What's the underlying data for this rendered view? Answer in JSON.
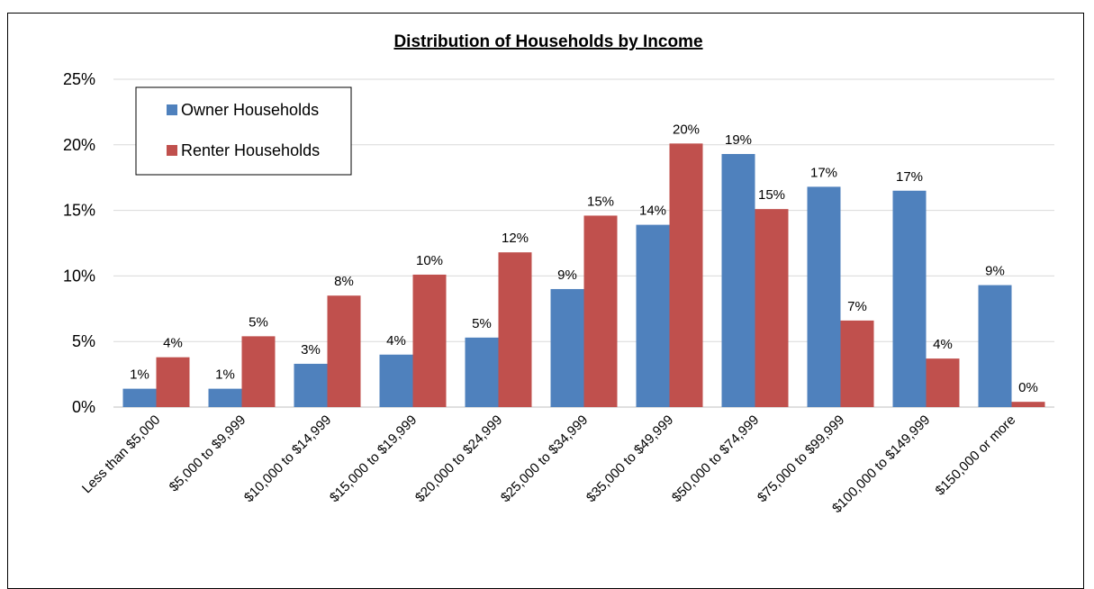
{
  "chart_data": {
    "type": "bar",
    "title": "Distribution of Households by Income",
    "xlabel": "",
    "ylabel": "",
    "ylim": [
      0,
      25
    ],
    "y_ticks": [
      "0%",
      "5%",
      "10%",
      "15%",
      "20%",
      "25%"
    ],
    "grid": true,
    "legend_position": "top-left",
    "categories": [
      "Less than $5,000",
      "$5,000 to $9,999",
      "$10,000 to $14,999",
      "$15,000 to $19,999",
      "$20,000 to $24,999",
      "$25,000 to $34,999",
      "$35,000 to $49,999",
      "$50,000 to $74,999",
      "$75,000 to $99,999",
      "$100,000 to $149,999",
      "$150,000 or more"
    ],
    "series": [
      {
        "name": "Owner Households",
        "color": "#4f81bd",
        "values": [
          1.4,
          1.4,
          3.3,
          4.0,
          5.3,
          9.0,
          13.9,
          19.3,
          16.8,
          16.5,
          9.3
        ],
        "labels": [
          "1%",
          "1%",
          "3%",
          "4%",
          "5%",
          "9%",
          "14%",
          "19%",
          "17%",
          "17%",
          "9%"
        ]
      },
      {
        "name": "Renter Households",
        "color": "#c0504d",
        "values": [
          3.8,
          5.4,
          8.5,
          10.1,
          11.8,
          14.6,
          20.1,
          15.1,
          6.6,
          3.7,
          0.4
        ],
        "labels": [
          "4%",
          "5%",
          "8%",
          "10%",
          "12%",
          "15%",
          "20%",
          "15%",
          "7%",
          "4%",
          "0%"
        ]
      }
    ]
  }
}
